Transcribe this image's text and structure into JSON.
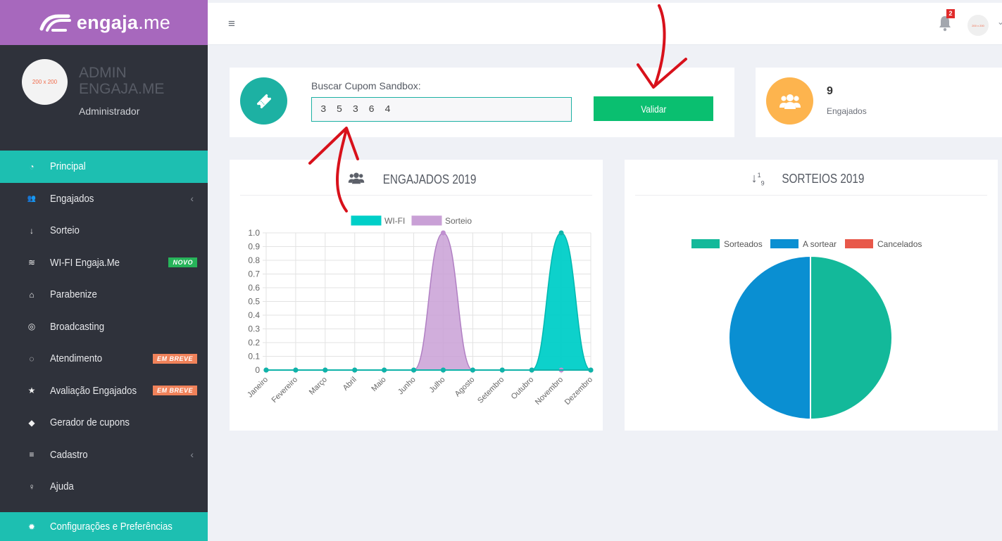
{
  "brand": {
    "name": "engaja",
    "tld": ".me"
  },
  "profile": {
    "avatar_text": "200 x 200",
    "name": "ADMIN ENGAJA.ME",
    "role": "Administrador"
  },
  "menu": [
    {
      "label": "Principal",
      "icon": "dashboard-icon",
      "active": true
    },
    {
      "label": "Engajados",
      "icon": "users-icon",
      "chevron": true
    },
    {
      "label": "Sorteio",
      "icon": "sort-numeric-icon"
    },
    {
      "label": "WI-FI Engaja.Me",
      "icon": "wifi-icon",
      "badge": "NOVO"
    },
    {
      "label": "Parabenize",
      "icon": "gift-icon"
    },
    {
      "label": "Broadcasting",
      "icon": "broadcast-icon"
    },
    {
      "label": "Atendimento",
      "icon": "chat-icon",
      "badge": "EM BREVE"
    },
    {
      "label": "Avaliação Engajados",
      "icon": "star-icon",
      "badge": "EM BREVE"
    },
    {
      "label": "Gerador de cupons",
      "icon": "ticket-icon"
    },
    {
      "label": "Cadastro",
      "icon": "sliders-icon",
      "chevron": true
    },
    {
      "label": "Ajuda",
      "icon": "lightbulb-icon"
    }
  ],
  "menu_footer": {
    "label": "Configurações e Preferências",
    "icon": "gear-icon"
  },
  "topbar": {
    "notifications": "2",
    "user_avatar_text": "200 x 200"
  },
  "coupon": {
    "label": "Buscar Cupom Sandbox:",
    "value": "35364",
    "button": "Validar"
  },
  "engajados": {
    "count": "9",
    "label": "Engajados"
  },
  "chart1_title": "ENGAJADOS 2019",
  "chart2_title": "SORTEIOS 2019",
  "chart_data": [
    {
      "type": "area",
      "title": "ENGAJADOS 2019",
      "categories": [
        "Janeiro",
        "Fevereiro",
        "Março",
        "Abril",
        "Maio",
        "Junho",
        "Julho",
        "Agosto",
        "Setembro",
        "Outubro",
        "Novembro",
        "Dezembro"
      ],
      "series": [
        {
          "name": "WI-FI",
          "color": "#00cfc8",
          "values": [
            0,
            0,
            0,
            0,
            0,
            0,
            0,
            0,
            0,
            0,
            1,
            0
          ]
        },
        {
          "name": "Sorteio",
          "color": "#c9a0d6",
          "values": [
            0,
            0,
            0,
            0,
            0,
            0,
            1,
            0,
            0,
            0,
            0,
            0
          ]
        }
      ],
      "yticks": [
        "1.0",
        "0.9",
        "0.8",
        "0.7",
        "0.6",
        "0.5",
        "0.4",
        "0.3",
        "0.2",
        "0.1",
        "0"
      ],
      "ylim": [
        0,
        1
      ],
      "grid": true,
      "legend": "top"
    },
    {
      "type": "pie",
      "title": "SORTEIOS 2019",
      "labels": [
        "Sorteados",
        "A sortear",
        "Cancelados"
      ],
      "colors": [
        "#13b99a",
        "#0a8fd2",
        "#e8584a"
      ],
      "values": [
        1,
        1,
        0
      ],
      "legend": "top"
    }
  ]
}
